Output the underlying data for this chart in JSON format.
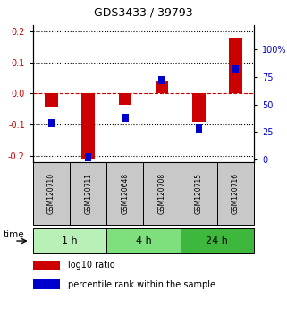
{
  "title": "GDS3433 / 39793",
  "samples": [
    "GSM120710",
    "GSM120711",
    "GSM120648",
    "GSM120708",
    "GSM120715",
    "GSM120716"
  ],
  "groups": [
    {
      "label": "1 h",
      "indices": [
        0,
        1
      ],
      "color": "#b8f0b8"
    },
    {
      "label": "4 h",
      "indices": [
        2,
        3
      ],
      "color": "#7de07d"
    },
    {
      "label": "24 h",
      "indices": [
        4,
        5
      ],
      "color": "#3db83d"
    }
  ],
  "log10_ratio": [
    -0.045,
    -0.21,
    -0.035,
    0.04,
    -0.09,
    0.18
  ],
  "percentile_rank": [
    33,
    2,
    38,
    72,
    28,
    82
  ],
  "ylim_left": [
    -0.22,
    0.22
  ],
  "ylim_right": [
    -2.2,
    122
  ],
  "yticks_left": [
    -0.2,
    -0.1,
    0.0,
    0.1,
    0.2
  ],
  "yticks_right": [
    0,
    25,
    50,
    75,
    100
  ],
  "ytick_labels_right": [
    "0",
    "25",
    "50",
    "75",
    "100%"
  ],
  "left_color": "#cc0000",
  "right_color": "#0000cc",
  "bar_width": 0.35,
  "zero_line_color": "#cc0000",
  "grid_color": "#000000",
  "sample_box_color": "#c8c8c8",
  "legend_red_label": "log10 ratio",
  "legend_blue_label": "percentile rank within the sample",
  "bg_color": "#ffffff"
}
